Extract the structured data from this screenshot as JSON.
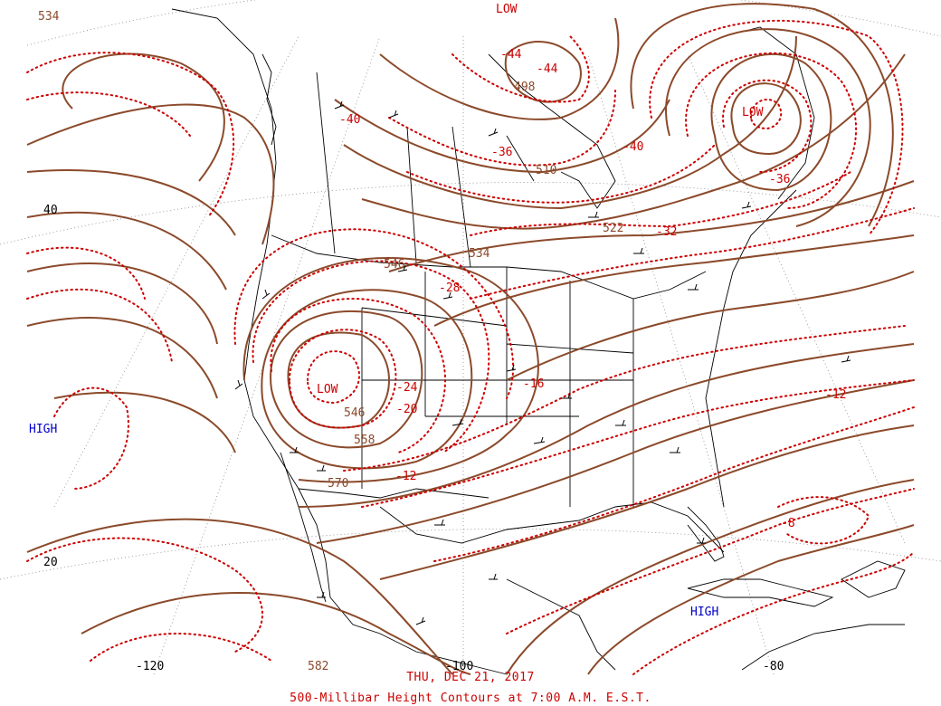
{
  "footer": {
    "date": "THU, DEC 21, 2017",
    "caption": "500-Millibar Height Contours at 7:00 A.M. E.S.T."
  },
  "colors": {
    "height_contour": "#8b4a2b",
    "temperature_isotherm": "#cc0000",
    "high_label": "#0000cc",
    "low_label": "#cc0000",
    "boundaries": "#000000",
    "grid": "#7f7f7f"
  },
  "latitude_labels": [
    "40",
    "20"
  ],
  "longitude_labels": [
    "-120",
    "-100",
    "-80"
  ],
  "pressure_centers": [
    {
      "type": "LOW",
      "label": "LOW"
    },
    {
      "type": "LOW",
      "label": "LOW"
    },
    {
      "type": "LOW",
      "label": "LOW"
    },
    {
      "type": "HIGH",
      "label": "HIGH"
    },
    {
      "type": "HIGH",
      "label": "HIGH"
    }
  ],
  "height_contour_labels": [
    "534",
    "498",
    "510",
    "522",
    "534",
    "546",
    "546",
    "558",
    "570",
    "582"
  ],
  "temperature_labels": [
    "-44",
    "-44",
    "-40",
    "-40",
    "-36",
    "-36",
    "-32",
    "-28",
    "-24",
    "-20",
    "-16",
    "-12",
    "-12",
    "-8"
  ],
  "icons": [
    "wind-barb-icon"
  ]
}
